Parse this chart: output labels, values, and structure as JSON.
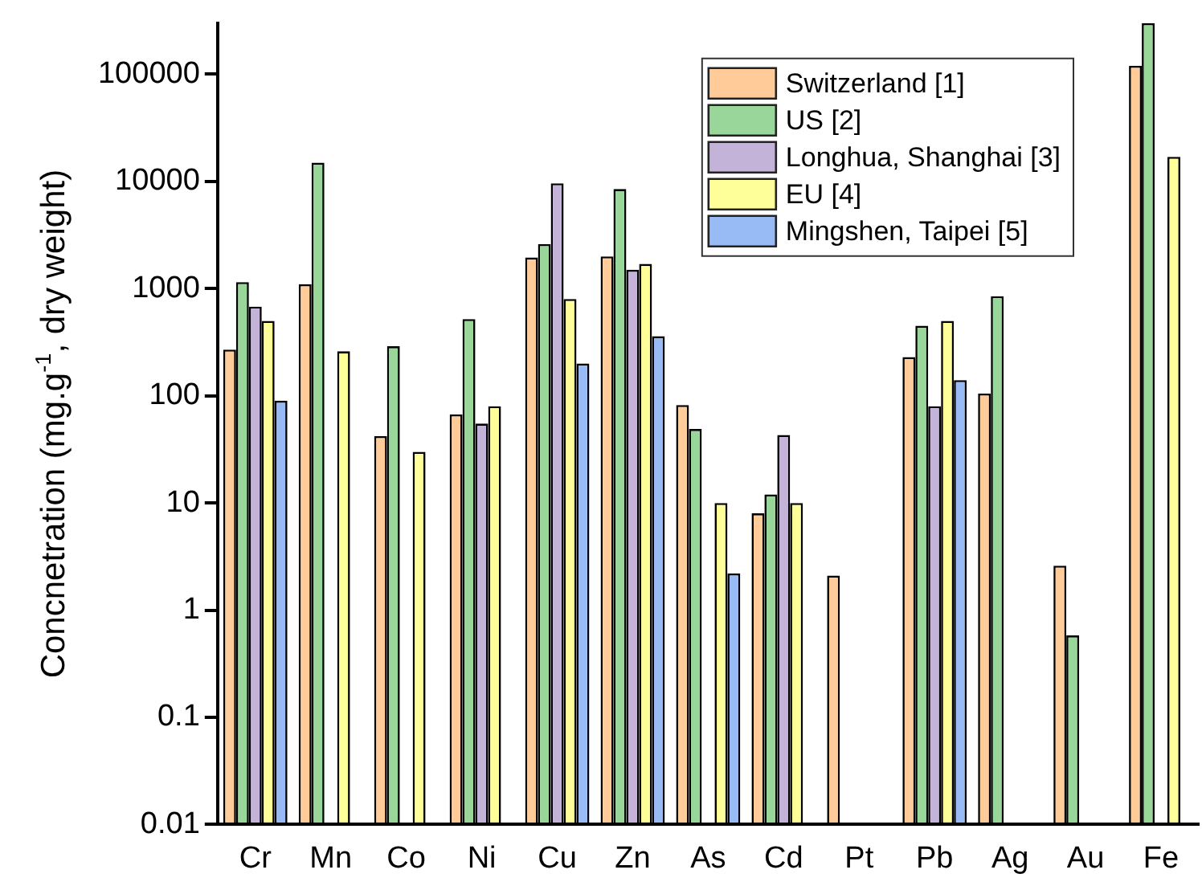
{
  "chart_data": {
    "type": "bar",
    "ylabel": "Concnetration (mg.g$^{-1}$, dry weight)",
    "categories": [
      "Cr",
      "Mn",
      "Co",
      "Ni",
      "Cu",
      "Zn",
      "As",
      "Cd",
      "Pt",
      "Pb",
      "Ag",
      "Au",
      "Fe"
    ],
    "series": [
      {
        "name": "Switzerland [1]",
        "color": "#ffcc99",
        "values": [
          270,
          1100,
          42,
          67,
          1950,
          2000,
          82,
          8,
          2.1,
          230,
          105,
          2.6,
          120000
        ]
      },
      {
        "name": "US [2]",
        "color": "#99d699",
        "values": [
          1150,
          15000,
          290,
          520,
          2600,
          8500,
          49,
          12,
          null,
          450,
          850,
          0.58,
          300000
        ]
      },
      {
        "name": "Longhua, Shanghai [3]",
        "color": "#c3b3d9",
        "values": [
          680,
          null,
          null,
          55,
          9600,
          1500,
          null,
          43,
          null,
          80,
          null,
          null,
          null
        ]
      },
      {
        "name": "EU [4]",
        "color": "#ffff99",
        "values": [
          500,
          260,
          30,
          80,
          800,
          1700,
          10,
          10,
          null,
          500,
          null,
          null,
          17000
        ]
      },
      {
        "name": "Mingshen, Taipei [5]",
        "color": "#99bbf5",
        "values": [
          90,
          null,
          null,
          null,
          200,
          360,
          2.2,
          null,
          null,
          140,
          null,
          null,
          null
        ]
      }
    ],
    "log": "y",
    "ylim": [
      0.01,
      300000
    ],
    "yticks": [
      0.01,
      0.1,
      1,
      10,
      100,
      1000,
      10000,
      100000
    ],
    "grid": false,
    "legend": "top right"
  }
}
